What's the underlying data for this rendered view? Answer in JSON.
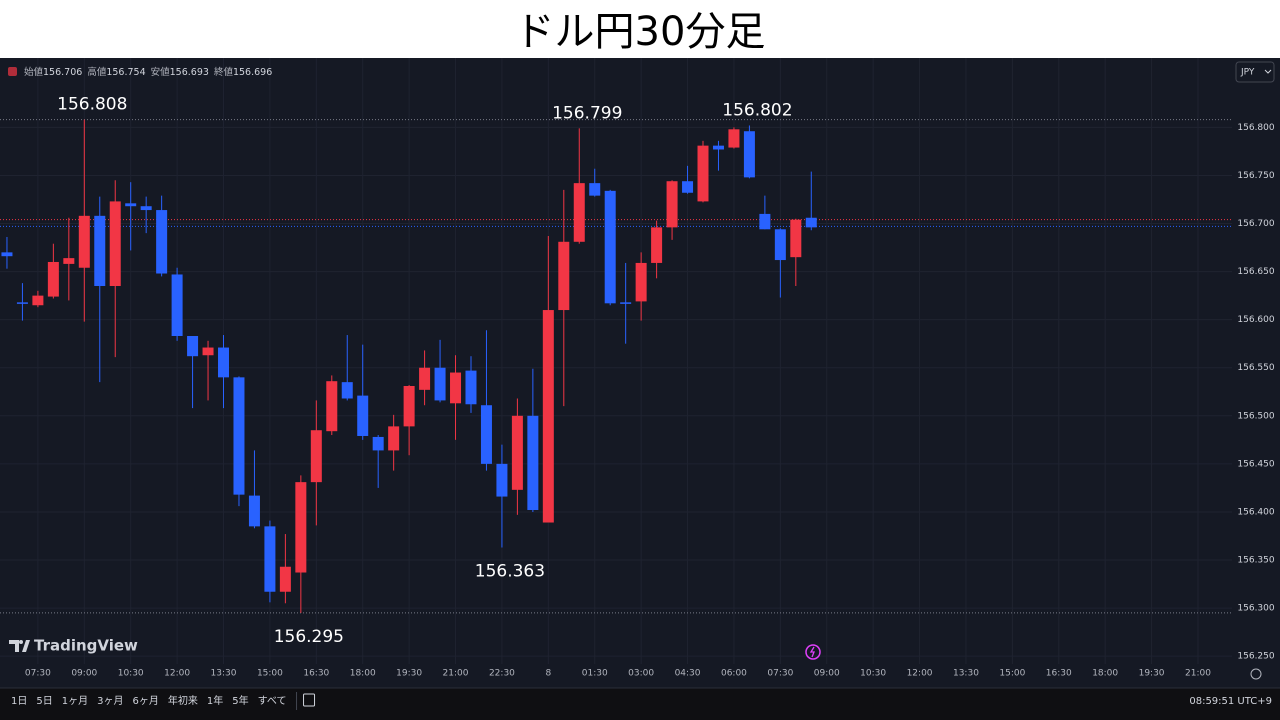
{
  "chart_data": {
    "type": "candlestick",
    "title": "ドル円30分足",
    "header": [
      {
        "label": "始値",
        "value": "156.706"
      },
      {
        "label": "高値",
        "value": "156.754"
      },
      {
        "label": "安値",
        "value": "156.693"
      },
      {
        "label": "終値",
        "value": "156.696"
      }
    ],
    "currency": "JPY",
    "open": [
      156.67,
      156.618,
      156.615,
      156.624,
      156.658,
      156.654,
      156.708,
      156.635,
      156.721,
      156.718,
      156.714,
      156.647,
      156.583,
      156.563,
      156.571,
      156.54,
      156.417,
      156.385,
      156.317,
      156.337,
      156.431,
      156.484,
      156.535,
      156.521,
      156.478,
      156.464,
      156.489,
      156.527,
      156.55,
      156.513,
      156.547,
      156.511,
      156.45,
      156.423,
      156.5,
      156.389,
      156.61,
      156.681,
      156.742,
      156.734,
      156.618,
      156.619,
      156.659,
      156.696,
      156.744,
      156.723,
      156.781,
      156.779,
      156.796,
      156.71,
      156.694,
      156.665,
      156.706
    ],
    "high": [
      156.686,
      156.638,
      156.63,
      156.679,
      156.706,
      156.808,
      156.728,
      156.745,
      156.743,
      156.728,
      156.729,
      156.654,
      156.583,
      156.578,
      156.584,
      156.541,
      156.464,
      156.391,
      156.377,
      156.438,
      156.516,
      156.542,
      156.584,
      156.574,
      156.48,
      156.501,
      156.532,
      156.568,
      156.579,
      156.563,
      156.562,
      156.589,
      156.47,
      156.518,
      156.549,
      156.687,
      156.735,
      156.799,
      156.757,
      156.735,
      156.659,
      156.67,
      156.703,
      156.745,
      156.76,
      156.786,
      156.786,
      156.8,
      156.802,
      156.729,
      156.695,
      156.705,
      156.754
    ],
    "low": [
      156.653,
      156.599,
      156.613,
      156.622,
      156.62,
      156.598,
      156.535,
      156.561,
      156.672,
      156.69,
      156.645,
      156.578,
      156.508,
      156.516,
      156.508,
      156.406,
      156.383,
      156.306,
      156.305,
      156.295,
      156.386,
      156.48,
      156.516,
      156.475,
      156.425,
      156.443,
      156.459,
      156.511,
      156.514,
      156.475,
      156.503,
      156.443,
      156.363,
      156.397,
      156.4,
      156.389,
      156.51,
      156.679,
      156.728,
      156.615,
      156.575,
      156.599,
      156.643,
      156.683,
      156.731,
      156.722,
      156.755,
      156.778,
      156.747,
      156.694,
      156.623,
      156.635,
      156.693
    ],
    "close": [
      156.666,
      156.617,
      156.625,
      156.66,
      156.664,
      156.708,
      156.635,
      156.723,
      156.718,
      156.714,
      156.648,
      156.583,
      156.562,
      156.571,
      156.54,
      156.418,
      156.385,
      156.317,
      156.343,
      156.431,
      156.485,
      156.536,
      156.518,
      156.479,
      156.464,
      156.489,
      156.531,
      156.55,
      156.516,
      156.545,
      156.512,
      156.45,
      156.416,
      156.5,
      156.402,
      156.61,
      156.681,
      156.742,
      156.729,
      156.617,
      156.617,
      156.659,
      156.696,
      156.744,
      156.732,
      156.781,
      156.777,
      156.798,
      156.748,
      156.694,
      156.662,
      156.704,
      156.696
    ],
    "up_color": "#f23645",
    "down_color": "#2962ff",
    "annotations": [
      {
        "label": "156.808",
        "value": 156.808
      },
      {
        "label": "156.799",
        "value": 156.799
      },
      {
        "label": "156.802",
        "value": 156.802
      },
      {
        "label": "156.295",
        "value": 156.295
      },
      {
        "label": "156.363",
        "value": 156.363
      }
    ],
    "price_lines": [
      {
        "value": 156.808,
        "color": "#787b86"
      },
      {
        "value": 156.295,
        "color": "#787b86"
      },
      {
        "value": 156.704,
        "color": "#f23645"
      },
      {
        "value": 156.697,
        "color": "#2962ff"
      }
    ],
    "xlim": [
      -0.45,
      79.2
    ],
    "xticks": [
      {
        "value": 2,
        "label": "07:30"
      },
      {
        "value": 5,
        "label": "09:00"
      },
      {
        "value": 8,
        "label": "10:30"
      },
      {
        "value": 11,
        "label": "12:00"
      },
      {
        "value": 14,
        "label": "13:30"
      },
      {
        "value": 17,
        "label": "15:00"
      },
      {
        "value": 20,
        "label": "16:30"
      },
      {
        "value": 23,
        "label": "18:00"
      },
      {
        "value": 26,
        "label": "19:30"
      },
      {
        "value": 29,
        "label": "21:00"
      },
      {
        "value": 32,
        "label": "22:30"
      },
      {
        "value": 35,
        "label": "8"
      },
      {
        "value": 38,
        "label": "01:30"
      },
      {
        "value": 41,
        "label": "03:00"
      },
      {
        "value": 44,
        "label": "04:30"
      },
      {
        "value": 47,
        "label": "06:00"
      },
      {
        "value": 50,
        "label": "07:30"
      },
      {
        "value": 53,
        "label": "09:00"
      },
      {
        "value": 56,
        "label": "10:30"
      },
      {
        "value": 59,
        "label": "12:00"
      },
      {
        "value": 62,
        "label": "13:30"
      },
      {
        "value": 65,
        "label": "15:00"
      },
      {
        "value": 68,
        "label": "16:30"
      },
      {
        "value": 71,
        "label": "18:00"
      },
      {
        "value": 74,
        "label": "19:30"
      },
      {
        "value": 77,
        "label": "21:00"
      }
    ],
    "ylim": [
      156.246,
      156.868
    ],
    "yticks": [
      {
        "value": 156.25,
        "label": "156.250"
      },
      {
        "value": 156.3,
        "label": "156.300"
      },
      {
        "value": 156.35,
        "label": "156.350"
      },
      {
        "value": 156.4,
        "label": "156.400"
      },
      {
        "value": 156.45,
        "label": "156.450"
      },
      {
        "value": 156.5,
        "label": "156.500"
      },
      {
        "value": 156.55,
        "label": "156.550"
      },
      {
        "value": 156.6,
        "label": "156.600"
      },
      {
        "value": 156.65,
        "label": "156.650"
      },
      {
        "value": 156.7,
        "label": "156.700"
      },
      {
        "value": 156.75,
        "label": "156.750"
      },
      {
        "value": 156.8,
        "label": "156.800"
      }
    ],
    "grid": true
  },
  "logo": "TradingView",
  "toolbar": {
    "ranges": [
      "1日",
      "5日",
      "1ヶ月",
      "3ヶ月",
      "6ヶ月",
      "年初来",
      "1年",
      "5年",
      "すべて"
    ],
    "clock": "08:59:51 UTC+9"
  }
}
